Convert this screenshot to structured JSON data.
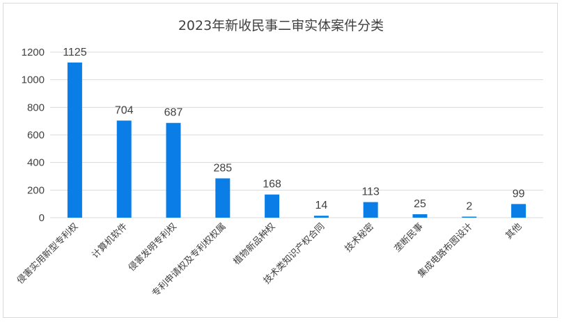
{
  "chart_data": {
    "type": "bar",
    "title": "2023年新收民事二审实体案件分类",
    "categories": [
      "侵害实用新型专利权",
      "计算机软件",
      "侵害发明专利权",
      "专利申请权及专利权权属",
      "植物新品种权",
      "技术类知识产权合同",
      "技术秘密",
      "垄断民事",
      "集成电路布图设计",
      "其他"
    ],
    "values": [
      1125,
      704,
      687,
      285,
      168,
      14,
      113,
      25,
      2,
      99
    ],
    "data_labels": [
      "1125",
      "704",
      "687",
      "285",
      "168",
      "14",
      "113",
      "25",
      "2",
      "99"
    ],
    "yticks": [
      "0",
      "200",
      "400",
      "600",
      "800",
      "1000",
      "1200"
    ],
    "ylim": [
      0,
      1200
    ],
    "xlabel": "",
    "ylabel": "",
    "grid": true,
    "legend": "none",
    "bar_color": "#0a7ee6",
    "grid_color": "#d9d9d9"
  }
}
